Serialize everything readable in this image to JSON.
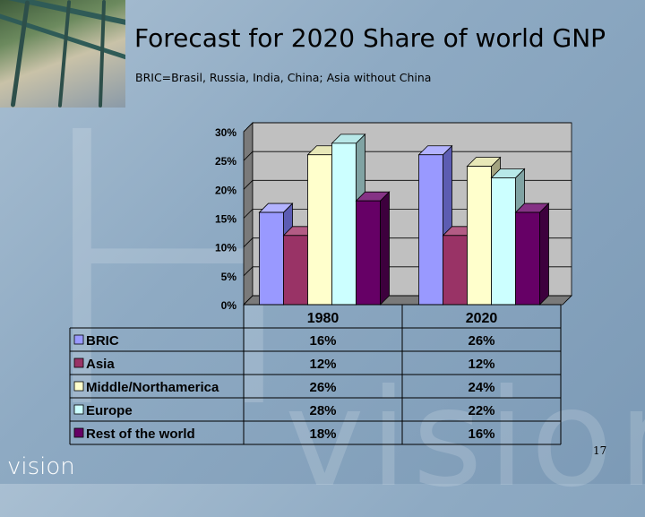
{
  "slide": {
    "title": "Forecast for 2020 Share of world GNP",
    "subtitle": "BRIC=Brasil, Russia, India, China;  Asia without China",
    "page_number": "17",
    "logo_text": "vision",
    "watermark_text": "vision"
  },
  "chart_data": {
    "type": "bar",
    "categories": [
      "1980",
      "2020"
    ],
    "ylim": [
      0,
      30
    ],
    "yticks": [
      "0%",
      "5%",
      "10%",
      "15%",
      "20%",
      "25%",
      "30%"
    ],
    "grid": true,
    "legend_placement": "data-table-below",
    "series": [
      {
        "name": "BRIC",
        "values": [
          16,
          26
        ],
        "labels": [
          "16%",
          "26%"
        ],
        "color": "#9999ff",
        "top": "#b3b3ff",
        "side": "#5c5cb3"
      },
      {
        "name": "Asia",
        "values": [
          12,
          12
        ],
        "labels": [
          "12%",
          "12%"
        ],
        "color": "#993366",
        "top": "#b35c85",
        "side": "#5c1f3d"
      },
      {
        "name": "Middle/Northamerica",
        "values": [
          26,
          24
        ],
        "labels": [
          "26%",
          "24%"
        ],
        "color": "#ffffcc",
        "top": "#e8e8b8",
        "side": "#a3a380"
      },
      {
        "name": "Europe",
        "values": [
          28,
          22
        ],
        "labels": [
          "28%",
          "22%"
        ],
        "color": "#ccffff",
        "top": "#b8e8e8",
        "side": "#80a3a3"
      },
      {
        "name": "Rest of the world",
        "values": [
          18,
          16
        ],
        "labels": [
          "18%",
          "16%"
        ],
        "color": "#660066",
        "top": "#853385",
        "side": "#3d003d"
      }
    ]
  }
}
